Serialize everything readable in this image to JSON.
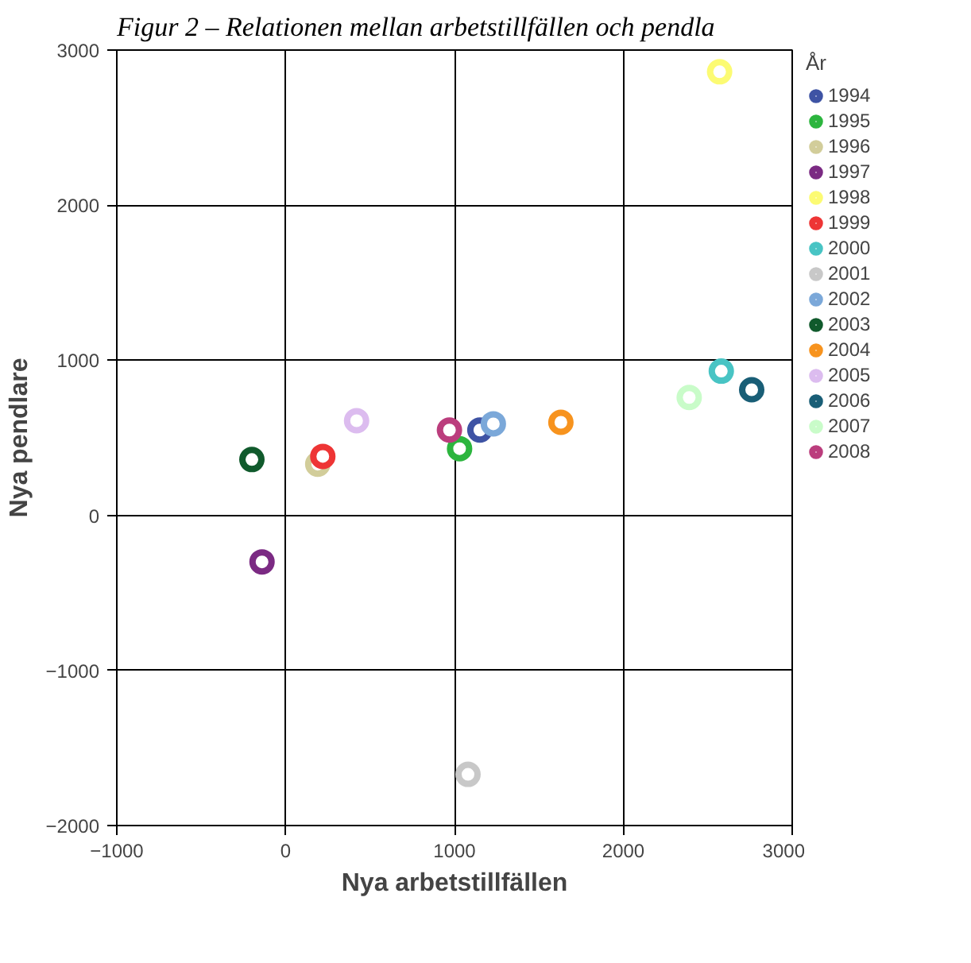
{
  "chart_data": {
    "type": "scatter",
    "title": "Figur 2 – Relationen mellan arbetstillfällen och pendla",
    "xlabel": "Nya arbetstillfällen",
    "ylabel": "Nya pendlare",
    "legend_title": "År",
    "legend": "right",
    "grid": true,
    "marker": "circle",
    "xlim": [
      -1000,
      3000
    ],
    "ylim": [
      -2000,
      3000
    ],
    "xticks": [
      -1000,
      0,
      1000,
      2000,
      3000
    ],
    "yticks": [
      -2000,
      -1000,
      0,
      1000,
      2000,
      3000
    ],
    "series": [
      {
        "name": "1994",
        "color": "#3e53a4",
        "x": [
          1150
        ],
        "values": [
          550
        ]
      },
      {
        "name": "1995",
        "color": "#2cb53e",
        "x": [
          1030
        ],
        "values": [
          430
        ]
      },
      {
        "name": "1996",
        "color": "#d2cd9a",
        "x": [
          190
        ],
        "values": [
          330
        ]
      },
      {
        "name": "1997",
        "color": "#7b2a83",
        "x": [
          -140
        ],
        "values": [
          -300
        ]
      },
      {
        "name": "1998",
        "color": "#fcfb73",
        "x": [
          2570
        ],
        "values": [
          2860
        ]
      },
      {
        "name": "1999",
        "color": "#ee3535",
        "x": [
          220
        ],
        "values": [
          380
        ]
      },
      {
        "name": "2000",
        "color": "#48c4c4",
        "x": [
          2580
        ],
        "values": [
          930
        ]
      },
      {
        "name": "2001",
        "color": "#c8c8c8",
        "x": [
          1080
        ],
        "values": [
          -1670
        ]
      },
      {
        "name": "2002",
        "color": "#7ba8d9",
        "x": [
          1230
        ],
        "values": [
          590
        ]
      },
      {
        "name": "2003",
        "color": "#105a2c",
        "x": [
          -200
        ],
        "values": [
          360
        ]
      },
      {
        "name": "2004",
        "color": "#f7931e",
        "x": [
          1630
        ],
        "values": [
          600
        ]
      },
      {
        "name": "2005",
        "color": "#dcbcef",
        "x": [
          420
        ],
        "values": [
          610
        ]
      },
      {
        "name": "2006",
        "color": "#195e76",
        "x": [
          2760
        ],
        "values": [
          810
        ]
      },
      {
        "name": "2007",
        "color": "#c9fcc9",
        "x": [
          2390
        ],
        "values": [
          760
        ]
      },
      {
        "name": "2008",
        "color": "#bb3d7d",
        "x": [
          970
        ],
        "values": [
          550
        ]
      }
    ]
  }
}
